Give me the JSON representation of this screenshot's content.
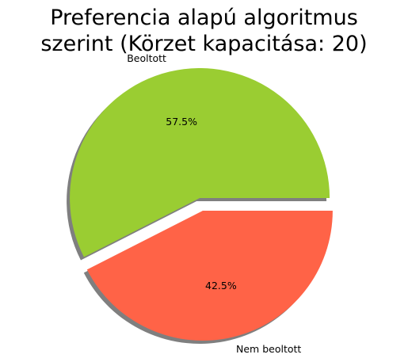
{
  "chart_data": {
    "type": "pie",
    "title_lines": [
      "Preferencia alapú algoritmus",
      "szerint (Körzet kapacitása: 20)"
    ],
    "slices": [
      {
        "label": "Beoltott",
        "value": 57.5,
        "pct_label": "57.5%",
        "color": "#9ACD32",
        "exploded": true
      },
      {
        "label": "Nem beoltott",
        "value": 42.5,
        "pct_label": "42.5%",
        "color": "#FF6347",
        "exploded": true
      }
    ],
    "shadow": true,
    "start_angle": 0,
    "direction": "counterclockwise",
    "legend": "none"
  }
}
